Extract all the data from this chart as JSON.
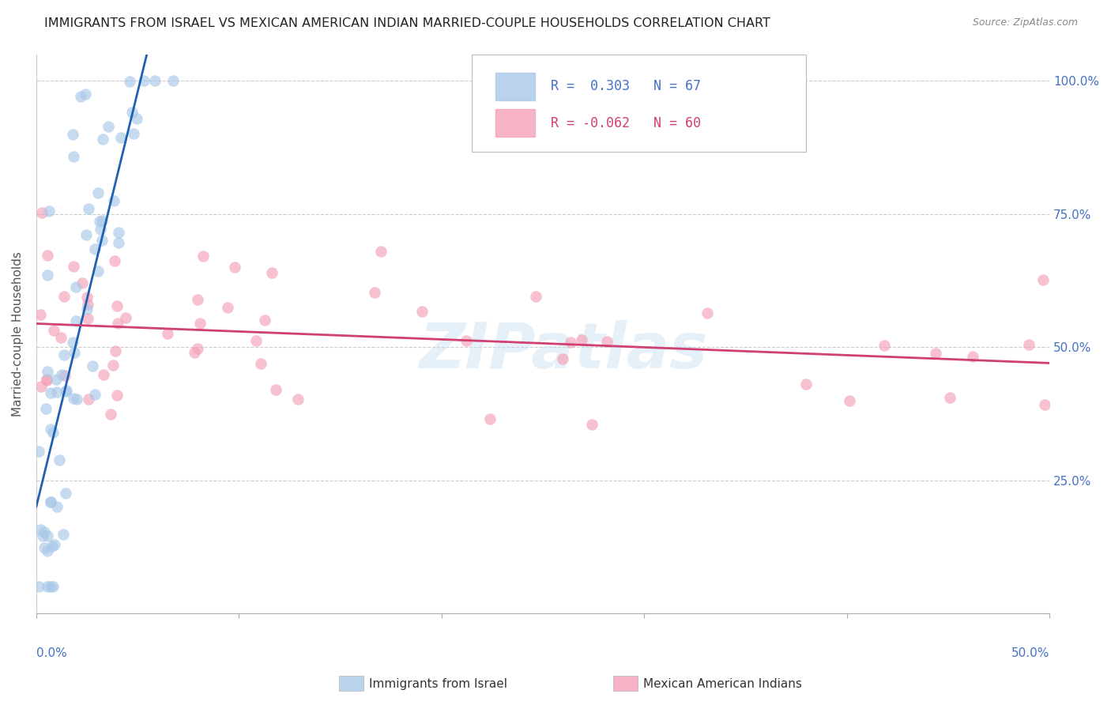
{
  "title": "IMMIGRANTS FROM ISRAEL VS MEXICAN AMERICAN INDIAN MARRIED-COUPLE HOUSEHOLDS CORRELATION CHART",
  "source": "Source: ZipAtlas.com",
  "ylabel": "Married-couple Households",
  "legend_blue_r": "0.303",
  "legend_blue_n": "67",
  "legend_pink_r": "-0.062",
  "legend_pink_n": "60",
  "legend_label_blue": "Immigrants from Israel",
  "legend_label_pink": "Mexican American Indians",
  "blue_color": "#a8c8e8",
  "pink_color": "#f4a0b8",
  "blue_line_color": "#2060b0",
  "pink_line_color": "#d04070",
  "background_color": "#ffffff",
  "grid_color": "#cccccc",
  "watermark": "ZIPatlas",
  "xlim": [
    0,
    0.5
  ],
  "ylim": [
    0,
    1.05
  ],
  "blue_seed": 1234,
  "pink_seed": 5678
}
